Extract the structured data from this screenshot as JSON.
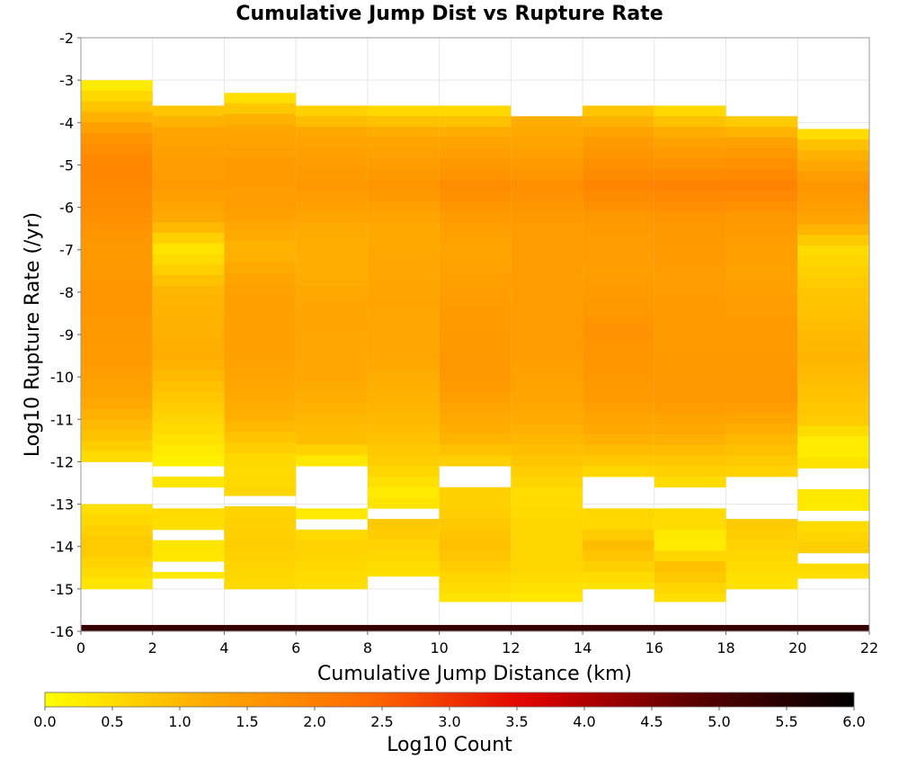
{
  "chart_data": {
    "type": "heatmap",
    "title": "Cumulative Jump Dist vs Rupture Rate",
    "xlabel": "Cumulative Jump Distance (km)",
    "ylabel": "Log10 Rupture Rate (/yr)",
    "xlim": [
      0,
      22
    ],
    "ylim": [
      -16,
      -2
    ],
    "x_ticks": [
      0,
      2,
      4,
      6,
      8,
      10,
      12,
      14,
      16,
      18,
      20,
      22
    ],
    "y_ticks": [
      -2,
      -3,
      -4,
      -5,
      -6,
      -7,
      -8,
      -9,
      -10,
      -11,
      -12,
      -13,
      -14,
      -15,
      -16
    ],
    "x_bin_width": 2,
    "y_bin_height": 0.25,
    "grid": true,
    "colorbar": {
      "label": "Log10 Count",
      "min": 0.0,
      "max": 6.0,
      "tick_labels": [
        "0.0",
        "0.5",
        "1.0",
        "1.5",
        "2.0",
        "2.5",
        "3.0",
        "3.5",
        "4.0",
        "4.5",
        "5.0",
        "5.5",
        "6.0"
      ],
      "colormap": [
        "#ffff00",
        "#ffaa00",
        "#ff6a00",
        "#e00000",
        "#5a0000",
        "#000000"
      ]
    },
    "columns": [
      {
        "x_start": 0,
        "y_top": -3.0,
        "y_bottom": -15.0,
        "gaps": [
          [
            -12.0,
            -13.0
          ]
        ],
        "profile": [
          [
            -3.0,
            0.15
          ],
          [
            -3.7,
            0.9
          ],
          [
            -4.3,
            1.6
          ],
          [
            -5.0,
            1.9
          ],
          [
            -6.0,
            1.75
          ],
          [
            -7.0,
            1.5
          ],
          [
            -8.0,
            1.6
          ],
          [
            -9.5,
            1.5
          ],
          [
            -10.5,
            1.3
          ],
          [
            -11.5,
            0.8
          ],
          [
            -12.0,
            0.4
          ],
          [
            -13.0,
            0.4
          ],
          [
            -14.0,
            0.8
          ],
          [
            -15.0,
            0.3
          ]
        ]
      },
      {
        "x_start": 2,
        "y_top": -3.6,
        "y_bottom": -14.75,
        "gaps": [
          [
            -12.15,
            -12.35
          ],
          [
            -12.6,
            -13.0
          ],
          [
            -13.6,
            -13.8
          ],
          [
            -14.35,
            -14.55
          ]
        ],
        "profile": [
          [
            -3.6,
            0.7
          ],
          [
            -4.2,
            1.3
          ],
          [
            -5.5,
            1.5
          ],
          [
            -6.3,
            1.2
          ],
          [
            -7.0,
            0.35
          ],
          [
            -8.0,
            1.05
          ],
          [
            -9.5,
            1.15
          ],
          [
            -11.0,
            0.6
          ],
          [
            -12.0,
            0.2
          ],
          [
            -13.0,
            0.55
          ],
          [
            -14.0,
            0.35
          ],
          [
            -14.75,
            0.3
          ]
        ]
      },
      {
        "x_start": 4,
        "y_top": -3.3,
        "y_bottom": -15.0,
        "gaps": [
          [
            -12.7,
            -12.95
          ]
        ],
        "profile": [
          [
            -3.3,
            0.3
          ],
          [
            -4.0,
            1.2
          ],
          [
            -5.0,
            1.5
          ],
          [
            -6.0,
            1.45
          ],
          [
            -7.0,
            1.05
          ],
          [
            -8.0,
            1.4
          ],
          [
            -9.5,
            1.4
          ],
          [
            -11.0,
            1.1
          ],
          [
            -12.0,
            0.5
          ],
          [
            -13.0,
            0.6
          ],
          [
            -14.0,
            0.7
          ],
          [
            -15.0,
            0.5
          ]
        ]
      },
      {
        "x_start": 6,
        "y_top": -3.6,
        "y_bottom": -15.0,
        "gaps": [
          [
            -12.1,
            -13.0
          ],
          [
            -13.3,
            -13.55
          ]
        ],
        "profile": [
          [
            -3.6,
            0.5
          ],
          [
            -4.3,
            1.3
          ],
          [
            -5.5,
            1.55
          ],
          [
            -6.5,
            1.2
          ],
          [
            -7.5,
            1.15
          ],
          [
            -8.5,
            1.3
          ],
          [
            -10.0,
            1.25
          ],
          [
            -11.5,
            0.9
          ],
          [
            -12.0,
            0.3
          ],
          [
            -13.2,
            0.3
          ],
          [
            -14.0,
            0.65
          ],
          [
            -15.0,
            0.45
          ]
        ]
      },
      {
        "x_start": 8,
        "y_top": -3.6,
        "y_bottom": -14.7,
        "gaps": [
          [
            -13.0,
            -13.25
          ]
        ],
        "profile": [
          [
            -3.6,
            0.4
          ],
          [
            -4.3,
            1.25
          ],
          [
            -5.5,
            1.6
          ],
          [
            -6.5,
            1.2
          ],
          [
            -8.0,
            1.3
          ],
          [
            -9.5,
            1.25
          ],
          [
            -11.0,
            1.0
          ],
          [
            -12.0,
            0.7
          ],
          [
            -12.8,
            0.25
          ],
          [
            -13.5,
            0.8
          ],
          [
            -14.7,
            0.4
          ]
        ]
      },
      {
        "x_start": 10,
        "y_top": -3.6,
        "y_bottom": -15.3,
        "gaps": [
          [
            -12.1,
            -12.7
          ]
        ],
        "profile": [
          [
            -3.6,
            0.4
          ],
          [
            -4.3,
            1.25
          ],
          [
            -5.5,
            1.75
          ],
          [
            -6.3,
            1.45
          ],
          [
            -7.0,
            1.3
          ],
          [
            -8.5,
            1.5
          ],
          [
            -10.0,
            1.55
          ],
          [
            -11.5,
            1.05
          ],
          [
            -12.0,
            0.65
          ],
          [
            -13.0,
            0.65
          ],
          [
            -14.0,
            0.9
          ],
          [
            -15.3,
            0.35
          ]
        ]
      },
      {
        "x_start": 12,
        "y_top": -3.85,
        "y_bottom": -15.3,
        "gaps": [],
        "profile": [
          [
            -3.85,
            1.1
          ],
          [
            -4.5,
            1.3
          ],
          [
            -5.5,
            1.7
          ],
          [
            -6.5,
            1.45
          ],
          [
            -8.0,
            1.45
          ],
          [
            -9.5,
            1.45
          ],
          [
            -11.0,
            1.2
          ],
          [
            -12.0,
            0.8
          ],
          [
            -12.8,
            0.45
          ],
          [
            -13.5,
            0.6
          ],
          [
            -14.5,
            0.6
          ],
          [
            -15.3,
            0.3
          ]
        ]
      },
      {
        "x_start": 14,
        "y_top": -3.6,
        "y_bottom": -15.0,
        "gaps": [
          [
            -12.3,
            -13.2
          ]
        ],
        "profile": [
          [
            -3.6,
            0.7
          ],
          [
            -4.3,
            1.4
          ],
          [
            -5.5,
            1.9
          ],
          [
            -6.3,
            1.5
          ],
          [
            -7.5,
            1.4
          ],
          [
            -9.0,
            1.65
          ],
          [
            -10.5,
            1.5
          ],
          [
            -11.5,
            1.1
          ],
          [
            -12.2,
            0.6
          ],
          [
            -13.5,
            0.55
          ],
          [
            -14.0,
            0.95
          ],
          [
            -15.0,
            0.35
          ]
        ]
      },
      {
        "x_start": 16,
        "y_top": -3.6,
        "y_bottom": -15.3,
        "gaps": [
          [
            -12.7,
            -13.2
          ]
        ],
        "profile": [
          [
            -3.6,
            0.4
          ],
          [
            -4.3,
            1.25
          ],
          [
            -5.5,
            1.95
          ],
          [
            -6.3,
            1.55
          ],
          [
            -7.5,
            1.45
          ],
          [
            -9.0,
            1.5
          ],
          [
            -10.5,
            1.55
          ],
          [
            -11.5,
            1.1
          ],
          [
            -12.5,
            0.5
          ],
          [
            -13.5,
            0.5
          ],
          [
            -13.9,
            0.2
          ],
          [
            -14.5,
            0.9
          ],
          [
            -15.3,
            0.4
          ]
        ]
      },
      {
        "x_start": 18,
        "y_top": -3.85,
        "y_bottom": -15.0,
        "gaps": [
          [
            -12.45,
            -13.3
          ]
        ],
        "profile": [
          [
            -3.85,
            0.6
          ],
          [
            -4.5,
            1.4
          ],
          [
            -5.5,
            1.95
          ],
          [
            -6.3,
            1.5
          ],
          [
            -7.5,
            1.35
          ],
          [
            -9.0,
            1.5
          ],
          [
            -10.5,
            1.55
          ],
          [
            -11.5,
            1.0
          ],
          [
            -12.3,
            0.6
          ],
          [
            -13.5,
            0.75
          ],
          [
            -14.5,
            0.5
          ],
          [
            -15.0,
            0.4
          ]
        ]
      },
      {
        "x_start": 20,
        "y_top": -4.15,
        "y_bottom": -14.75,
        "gaps": [
          [
            -12.15,
            -12.75
          ],
          [
            -13.25,
            -13.5
          ],
          [
            -14.15,
            -14.4
          ]
        ],
        "profile": [
          [
            -4.15,
            0.3
          ],
          [
            -4.6,
            1.0
          ],
          [
            -5.5,
            1.6
          ],
          [
            -6.3,
            1.3
          ],
          [
            -7.0,
            0.5
          ],
          [
            -8.0,
            0.8
          ],
          [
            -9.5,
            1.05
          ],
          [
            -11.0,
            0.75
          ],
          [
            -11.6,
            0.2
          ],
          [
            -12.0,
            0.4
          ],
          [
            -13.0,
            0.3
          ],
          [
            -14.0,
            0.7
          ],
          [
            -14.75,
            0.4
          ]
        ]
      }
    ],
    "bottom_band": {
      "x_range": [
        0,
        22
      ],
      "y_range": [
        -16.0,
        -15.85
      ],
      "value": 5.3
    }
  }
}
